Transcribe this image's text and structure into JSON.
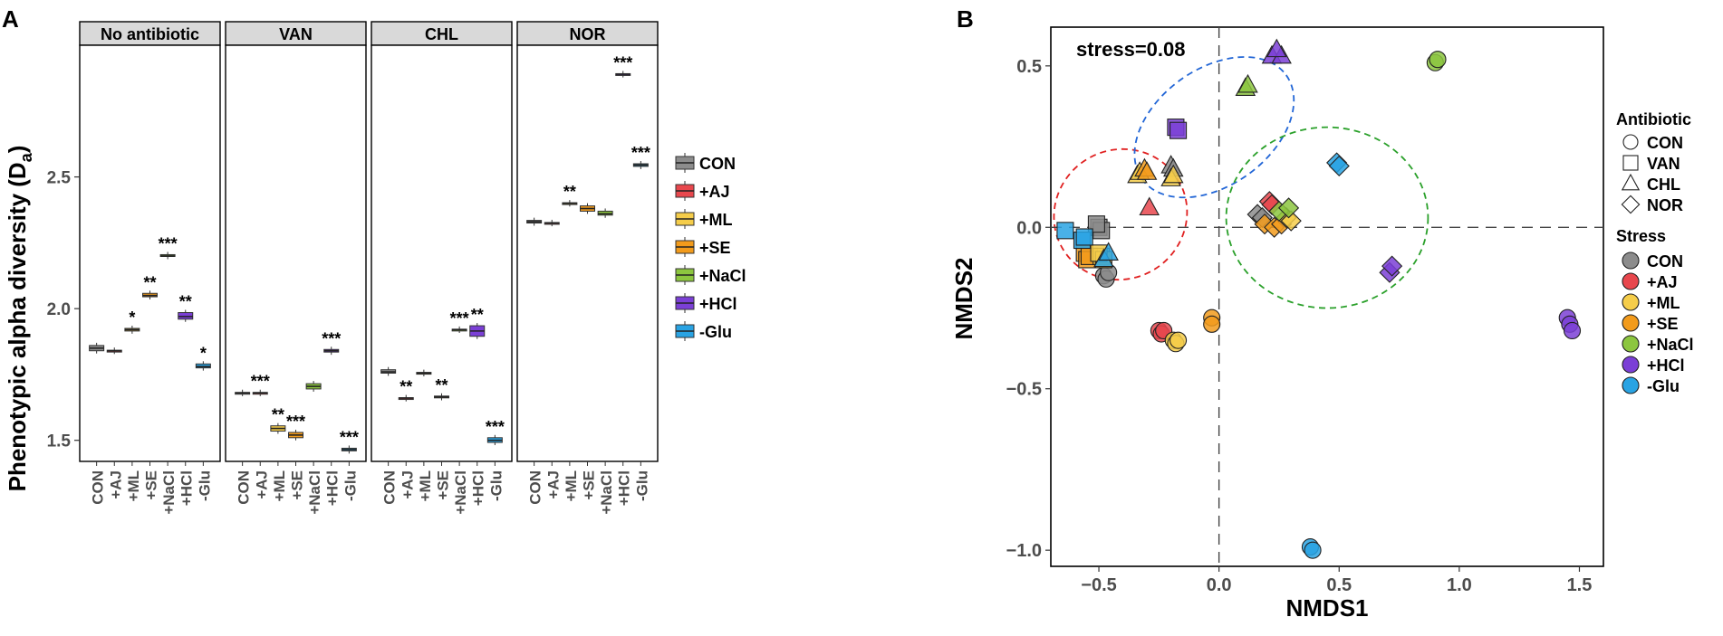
{
  "colors": {
    "CON": "#8c8c8c",
    "+AJ": "#e8474d",
    "+ML": "#f5cd4a",
    "+SE": "#f29b1c",
    "+NaCl": "#8cc63f",
    "+HCl": "#7b3fd6",
    "-Glu": "#29a3e3",
    "strip_bg": "#d9d9d9",
    "ellipse_red": "#e02020",
    "ellipse_blue": "#2266d6",
    "ellipse_green": "#2aa02a"
  },
  "chart_data": [
    {
      "type": "box",
      "panel_label": "A",
      "ylabel": "Phenotypic alpha diversity (D",
      "ylabel_subscript": "a",
      "ylabel_close": ")",
      "ylim": [
        1.42,
        3.0
      ],
      "yticks": [
        "1.5",
        "2.0",
        "2.5"
      ],
      "categories": [
        "CON",
        "+AJ",
        "+ML",
        "+SE",
        "+NaCl",
        "+HCl",
        "-Glu"
      ],
      "legend": [
        "CON",
        "+AJ",
        "+ML",
        "+SE",
        "+NaCl",
        "+HCl",
        "-Glu"
      ],
      "facets": [
        {
          "name": "No antibiotic",
          "median": [
            1.85,
            1.84,
            1.92,
            2.05,
            2.2,
            1.97,
            1.78
          ],
          "q1": [
            1.84,
            1.838,
            1.915,
            2.045,
            2.198,
            1.96,
            1.775
          ],
          "q3": [
            1.86,
            1.842,
            1.925,
            2.058,
            2.205,
            1.985,
            1.79
          ],
          "sig": [
            "",
            "",
            "*",
            "**",
            "***",
            "**",
            "*"
          ]
        },
        {
          "name": "VAN",
          "median": [
            1.68,
            1.68,
            1.545,
            1.52,
            1.705,
            1.84,
            1.465
          ],
          "q1": [
            1.678,
            1.678,
            1.535,
            1.51,
            1.695,
            1.835,
            1.46
          ],
          "q3": [
            1.682,
            1.682,
            1.555,
            1.53,
            1.715,
            1.845,
            1.47
          ],
          "sig": [
            "",
            "***",
            "**",
            "***",
            "",
            "***",
            "***"
          ]
        },
        {
          "name": "CHL",
          "median": [
            1.76,
            1.66,
            1.755,
            1.665,
            1.92,
            1.915,
            1.5
          ],
          "q1": [
            1.755,
            1.658,
            1.753,
            1.662,
            1.918,
            1.895,
            1.492
          ],
          "q3": [
            1.768,
            1.662,
            1.758,
            1.668,
            1.922,
            1.935,
            1.51
          ],
          "sig": [
            "",
            "**",
            "",
            "**",
            "***",
            "**",
            "***"
          ]
        },
        {
          "name": "NOR",
          "median": [
            2.33,
            2.325,
            2.4,
            2.38,
            2.36,
            2.89,
            2.545
          ],
          "q1": [
            2.325,
            2.323,
            2.398,
            2.37,
            2.355,
            2.888,
            2.54
          ],
          "q3": [
            2.335,
            2.327,
            2.402,
            2.39,
            2.37,
            2.892,
            2.55
          ],
          "sig": [
            "",
            "",
            "**",
            "",
            "",
            "***",
            "***"
          ]
        }
      ]
    },
    {
      "type": "scatter",
      "panel_label": "B",
      "xlabel": "NMDS1",
      "ylabel": "NMDS2",
      "xlim": [
        -0.7,
        1.6
      ],
      "ylim": [
        -1.05,
        0.62
      ],
      "xticks": [
        "-0.5",
        "0.0",
        "0.5",
        "1.0",
        "1.5"
      ],
      "yticks": [
        "-1.0",
        "-0.5",
        "0.0",
        "0.5"
      ],
      "annotation": "stress=0.08",
      "legend_antibiotic_title": "Antibiotic",
      "legend_antibiotic": [
        "CON",
        "VAN",
        "CHL",
        "NOR"
      ],
      "legend_stress_title": "Stress",
      "legend_stress": [
        "CON",
        "+AJ",
        "+ML",
        "+SE",
        "+NaCl",
        "+HCl",
        "-Glu"
      ],
      "points": [
        {
          "stress": "CON",
          "shape": "circle",
          "x": -0.48,
          "y": -0.15
        },
        {
          "stress": "CON",
          "shape": "circle",
          "x": -0.47,
          "y": -0.16
        },
        {
          "stress": "CON",
          "shape": "circle",
          "x": -0.46,
          "y": -0.14
        },
        {
          "stress": "+AJ",
          "shape": "circle",
          "x": -0.25,
          "y": -0.32
        },
        {
          "stress": "+AJ",
          "shape": "circle",
          "x": -0.24,
          "y": -0.33
        },
        {
          "stress": "+AJ",
          "shape": "circle",
          "x": -0.23,
          "y": -0.32
        },
        {
          "stress": "+ML",
          "shape": "circle",
          "x": -0.19,
          "y": -0.35
        },
        {
          "stress": "+ML",
          "shape": "circle",
          "x": -0.18,
          "y": -0.36
        },
        {
          "stress": "+ML",
          "shape": "circle",
          "x": -0.17,
          "y": -0.35
        },
        {
          "stress": "+SE",
          "shape": "circle",
          "x": -0.03,
          "y": -0.28
        },
        {
          "stress": "+SE",
          "shape": "circle",
          "x": -0.03,
          "y": -0.3
        },
        {
          "stress": "+NaCl",
          "shape": "circle",
          "x": 0.9,
          "y": 0.51
        },
        {
          "stress": "+NaCl",
          "shape": "circle",
          "x": 0.91,
          "y": 0.52
        },
        {
          "stress": "+HCl",
          "shape": "circle",
          "x": 1.45,
          "y": -0.28
        },
        {
          "stress": "+HCl",
          "shape": "circle",
          "x": 1.46,
          "y": -0.3
        },
        {
          "stress": "+HCl",
          "shape": "circle",
          "x": 1.47,
          "y": -0.32
        },
        {
          "stress": "-Glu",
          "shape": "circle",
          "x": 0.38,
          "y": -0.99
        },
        {
          "stress": "-Glu",
          "shape": "circle",
          "x": 0.39,
          "y": -1.0
        },
        {
          "stress": "CON",
          "shape": "square",
          "x": -0.5,
          "y": 0.0
        },
        {
          "stress": "CON",
          "shape": "square",
          "x": -0.49,
          "y": -0.01
        },
        {
          "stress": "CON",
          "shape": "square",
          "x": -0.51,
          "y": 0.01
        },
        {
          "stress": "+SE",
          "shape": "square",
          "x": -0.56,
          "y": -0.08
        },
        {
          "stress": "+SE",
          "shape": "square",
          "x": -0.55,
          "y": -0.1
        },
        {
          "stress": "+SE",
          "shape": "square",
          "x": -0.54,
          "y": -0.09
        },
        {
          "stress": "+ML",
          "shape": "square",
          "x": -0.49,
          "y": -0.09
        },
        {
          "stress": "+ML",
          "shape": "square",
          "x": -0.48,
          "y": -0.1
        },
        {
          "stress": "+ML",
          "shape": "square",
          "x": -0.5,
          "y": -0.08
        },
        {
          "stress": "-Glu",
          "shape": "square",
          "x": -0.64,
          "y": -0.01
        },
        {
          "stress": "-Glu",
          "shape": "square",
          "x": -0.57,
          "y": -0.04
        },
        {
          "stress": "-Glu",
          "shape": "square",
          "x": -0.56,
          "y": -0.03
        },
        {
          "stress": "+HCl",
          "shape": "square",
          "x": -0.18,
          "y": 0.31
        },
        {
          "stress": "+HCl",
          "shape": "square",
          "x": -0.17,
          "y": 0.3
        },
        {
          "stress": "CON",
          "shape": "triangle",
          "x": -0.2,
          "y": 0.19
        },
        {
          "stress": "CON",
          "shape": "triangle",
          "x": -0.19,
          "y": 0.18
        },
        {
          "stress": "+ML",
          "shape": "triangle",
          "x": -0.34,
          "y": 0.16
        },
        {
          "stress": "+ML",
          "shape": "triangle",
          "x": -0.33,
          "y": 0.17
        },
        {
          "stress": "+SE",
          "shape": "triangle",
          "x": -0.31,
          "y": 0.18
        },
        {
          "stress": "+SE",
          "shape": "triangle",
          "x": -0.3,
          "y": 0.17
        },
        {
          "stress": "+ML",
          "shape": "triangle",
          "x": -0.2,
          "y": 0.15
        },
        {
          "stress": "+ML",
          "shape": "triangle",
          "x": -0.19,
          "y": 0.16
        },
        {
          "stress": "+AJ",
          "shape": "triangle",
          "x": -0.29,
          "y": 0.06
        },
        {
          "stress": "-Glu",
          "shape": "triangle",
          "x": -0.48,
          "y": -0.1
        },
        {
          "stress": "-Glu",
          "shape": "triangle",
          "x": -0.46,
          "y": -0.08
        },
        {
          "stress": "+NaCl",
          "shape": "triangle",
          "x": 0.11,
          "y": 0.43
        },
        {
          "stress": "+NaCl",
          "shape": "triangle",
          "x": 0.12,
          "y": 0.44
        },
        {
          "stress": "+HCl",
          "shape": "triangle",
          "x": 0.22,
          "y": 0.53
        },
        {
          "stress": "+HCl",
          "shape": "triangle",
          "x": 0.26,
          "y": 0.53
        },
        {
          "stress": "+HCl",
          "shape": "triangle",
          "x": 0.24,
          "y": 0.55
        },
        {
          "stress": "CON",
          "shape": "diamond",
          "x": 0.16,
          "y": 0.04
        },
        {
          "stress": "CON",
          "shape": "diamond",
          "x": 0.18,
          "y": 0.03
        },
        {
          "stress": "+AJ",
          "shape": "diamond",
          "x": 0.21,
          "y": 0.08
        },
        {
          "stress": "+AJ",
          "shape": "diamond",
          "x": 0.22,
          "y": 0.07
        },
        {
          "stress": "+SE",
          "shape": "diamond",
          "x": 0.19,
          "y": 0.01
        },
        {
          "stress": "+SE",
          "shape": "diamond",
          "x": 0.23,
          "y": 0.0
        },
        {
          "stress": "+SE",
          "shape": "diamond",
          "x": 0.26,
          "y": 0.01
        },
        {
          "stress": "+ML",
          "shape": "diamond",
          "x": 0.28,
          "y": 0.03
        },
        {
          "stress": "+ML",
          "shape": "diamond",
          "x": 0.3,
          "y": 0.02
        },
        {
          "stress": "+NaCl",
          "shape": "diamond",
          "x": 0.25,
          "y": 0.05
        },
        {
          "stress": "+NaCl",
          "shape": "diamond",
          "x": 0.29,
          "y": 0.06
        },
        {
          "stress": "-Glu",
          "shape": "diamond",
          "x": 0.49,
          "y": 0.2
        },
        {
          "stress": "-Glu",
          "shape": "diamond",
          "x": 0.5,
          "y": 0.19
        },
        {
          "stress": "+HCl",
          "shape": "diamond",
          "x": 0.71,
          "y": -0.14
        },
        {
          "stress": "+HCl",
          "shape": "diamond",
          "x": 0.72,
          "y": -0.12
        }
      ],
      "ellipses": [
        {
          "color": "red",
          "cx": -0.41,
          "cy": 0.04,
          "rx": 0.28,
          "ry": 0.2,
          "angle_deg": 32
        },
        {
          "color": "blue",
          "cx": -0.02,
          "cy": 0.31,
          "rx": 0.37,
          "ry": 0.18,
          "angle_deg": 36
        },
        {
          "color": "green",
          "cx": 0.45,
          "cy": 0.03,
          "rx": 0.42,
          "ry": 0.28,
          "angle_deg": 0
        }
      ]
    }
  ]
}
